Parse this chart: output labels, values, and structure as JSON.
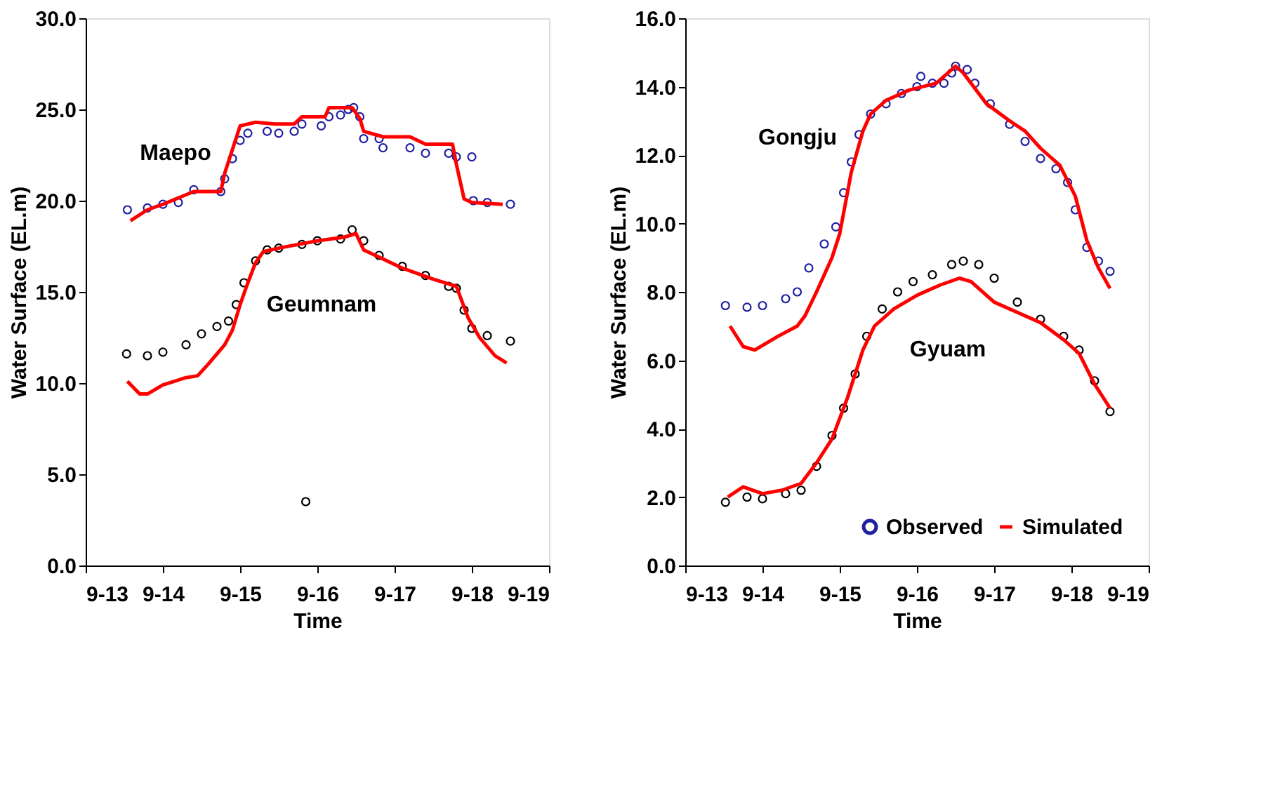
{
  "chart_data": [
    {
      "type": "line",
      "xlabel": "Time",
      "ylabel": "Water Surface (EL.m)",
      "xlim": [
        "--09-13",
        "--09-19"
      ],
      "ylim": [
        0,
        30
      ],
      "xticks": [
        {
          "value": "--09-13",
          "label": "9-13"
        },
        {
          "value": "--09-14",
          "label": "9-14"
        },
        {
          "value": "--09-15",
          "label": "9-15"
        },
        {
          "value": "--09-16",
          "label": "9-16"
        },
        {
          "value": "--09-17",
          "label": "9-17"
        },
        {
          "value": "--09-18",
          "label": "9-18"
        },
        {
          "value": "--09-19",
          "label": "9-19"
        }
      ],
      "yticks": [
        {
          "value": 0,
          "label": "0.0"
        },
        {
          "value": 5,
          "label": "5.0"
        },
        {
          "value": 10,
          "label": "10.0"
        },
        {
          "value": 15,
          "label": "15.0"
        },
        {
          "value": 20,
          "label": "20.0"
        },
        {
          "value": 25,
          "label": "25.0"
        },
        {
          "value": 30,
          "label": "30.0"
        }
      ],
      "grid": false,
      "legend": false,
      "annotations": [
        "Maepo",
        "Geumnam"
      ],
      "series": [
        {
          "type": "scatter",
          "color": "#1f1fa0",
          "marker": "circle",
          "x": [
            "--09-13T12:58",
            "--09-13T19:12",
            "--09-14T00:00",
            "--09-14T04:48",
            "--09-14T09:36",
            "--09-14T18:00",
            "--09-14T19:12",
            "--09-14T21:36",
            "--09-15T00:00",
            "--09-15T02:24",
            "--09-15T08:24",
            "--09-15T12:00",
            "--09-15T16:48",
            "--09-15T19:12",
            "--09-16T01:12",
            "--09-16T03:36",
            "--09-16T07:12",
            "--09-16T09:36",
            "--09-16T11:17",
            "--09-16T13:12",
            "--09-16T14:24",
            "--09-16T19:12",
            "--09-16T20:24",
            "--09-17T04:48",
            "--09-17T09:36",
            "--09-17T16:48",
            "--09-17T19:12",
            "--09-18T00:00",
            "--09-18T00:29",
            "--09-18T04:48",
            "--09-18T12:00"
          ],
          "values": [
            19.5,
            19.6,
            19.8,
            19.9,
            20.6,
            20.5,
            21.2,
            22.3,
            23.3,
            23.7,
            23.8,
            23.7,
            23.8,
            24.2,
            24.1,
            24.6,
            24.7,
            25.0,
            25.1,
            24.6,
            23.4,
            23.4,
            22.9,
            22.9,
            22.6,
            22.6,
            22.4,
            22.4,
            20.0,
            19.9,
            19.8
          ]
        },
        {
          "color": "#ff0000",
          "x": [
            "--09-13T13:55",
            "--09-13T19:12",
            "--09-14T00:00",
            "--09-14T09:36",
            "--09-14T18:00",
            "--09-14T19:12",
            "--09-15T00:00",
            "--09-15T04:48",
            "--09-15T10:48",
            "--09-15T16:48",
            "--09-15T19:12",
            "--09-16T02:24",
            "--09-16T03:36",
            "--09-16T10:48",
            "--09-16T13:12",
            "--09-16T14:24",
            "--09-16T20:24",
            "--09-17T04:48",
            "--09-17T09:36",
            "--09-17T18:00",
            "--09-17T19:12",
            "--09-17T21:36",
            "--09-18T00:00",
            "--09-18T09:36"
          ],
          "values": [
            18.9,
            19.5,
            19.8,
            20.5,
            20.5,
            21.5,
            24.1,
            24.3,
            24.2,
            24.2,
            24.6,
            24.6,
            25.1,
            25.1,
            24.5,
            23.8,
            23.5,
            23.5,
            23.1,
            23.1,
            22.0,
            20.1,
            19.9,
            19.8
          ]
        },
        {
          "type": "scatter",
          "color": "#000000",
          "marker": "circle",
          "x": [
            "--09-13T12:43",
            "--09-13T19:12",
            "--09-14T00:00",
            "--09-14T07:12",
            "--09-14T12:00",
            "--09-14T16:48",
            "--09-14T20:24",
            "--09-14T22:48",
            "--09-15T01:12",
            "--09-15T04:48",
            "--09-15T08:24",
            "--09-15T12:00",
            "--09-15T19:12",
            "--09-15T20:24",
            "--09-16T00:00",
            "--09-16T07:12",
            "--09-16T10:48",
            "--09-16T14:24",
            "--09-16T19:12",
            "--09-17T02:24",
            "--09-17T09:36",
            "--09-17T16:48",
            "--09-17T19:12",
            "--09-17T21:36",
            "--09-18T00:00",
            "--09-18T04:48",
            "--09-18T12:00"
          ],
          "values": [
            11.6,
            11.5,
            11.7,
            12.1,
            12.7,
            13.1,
            13.4,
            14.3,
            15.5,
            16.7,
            17.3,
            17.4,
            17.6,
            3.5,
            17.8,
            17.9,
            18.4,
            17.8,
            17.0,
            16.4,
            15.9,
            15.3,
            15.2,
            14.0,
            13.0,
            12.6,
            12.3
          ]
        },
        {
          "color": "#ff0000",
          "x": [
            "--09-13T12:58",
            "--09-13T16:48",
            "--09-13T19:12",
            "--09-14T00:00",
            "--09-14T07:12",
            "--09-14T10:48",
            "--09-14T14:24",
            "--09-14T19:12",
            "--09-14T21:36",
            "--09-15T00:00",
            "--09-15T02:24",
            "--09-15T04:48",
            "--09-15T07:12",
            "--09-15T12:00",
            "--09-16T00:00",
            "--09-16T08:24",
            "--09-16T12:00",
            "--09-16T14:24",
            "--09-16T19:12",
            "--09-17T02:24",
            "--09-17T12:00",
            "--09-17T19:12",
            "--09-17T22:48",
            "--09-18T02:24",
            "--09-18T07:12",
            "--09-18T10:48"
          ],
          "values": [
            10.1,
            9.4,
            9.4,
            9.9,
            10.3,
            10.4,
            11.1,
            12.1,
            12.9,
            14.3,
            15.5,
            16.6,
            17.2,
            17.4,
            17.8,
            18.0,
            18.2,
            17.3,
            16.9,
            16.3,
            15.7,
            15.3,
            13.6,
            12.5,
            11.5,
            11.1
          ]
        }
      ]
    },
    {
      "type": "line",
      "xlabel": "Time",
      "ylabel": "Water Surface (EL.m)",
      "xlim": [
        "--09-13",
        "--09-19"
      ],
      "ylim": [
        0,
        16
      ],
      "xticks": [
        {
          "value": "--09-13",
          "label": "9-13"
        },
        {
          "value": "--09-14",
          "label": "9-14"
        },
        {
          "value": "--09-15",
          "label": "9-15"
        },
        {
          "value": "--09-16",
          "label": "9-16"
        },
        {
          "value": "--09-17",
          "label": "9-17"
        },
        {
          "value": "--09-18",
          "label": "9-18"
        },
        {
          "value": "--09-19",
          "label": "9-19"
        }
      ],
      "yticks": [
        {
          "value": 0,
          "label": "0.0"
        },
        {
          "value": 2,
          "label": "2.0"
        },
        {
          "value": 4,
          "label": "4.0"
        },
        {
          "value": 6,
          "label": "6.0"
        },
        {
          "value": 8,
          "label": "8.0"
        },
        {
          "value": 10,
          "label": "10.0"
        },
        {
          "value": 12,
          "label": "12.0"
        },
        {
          "value": 14,
          "label": "14.0"
        },
        {
          "value": 16,
          "label": "16.0"
        }
      ],
      "grid": false,
      "legend": "bottom right",
      "annotations": [
        "Gongju",
        "Gyuam"
      ],
      "series": [
        {
          "type": "scatter",
          "name": "Observed",
          "color": "#1f1fa0",
          "marker": "circle",
          "x": [
            "--09-13T12:29",
            "--09-13T19:12",
            "--09-14T00:00",
            "--09-14T07:12",
            "--09-14T10:48",
            "--09-14T14:24",
            "--09-14T19:12",
            "--09-14T22:48",
            "--09-15T01:12",
            "--09-15T03:36",
            "--09-15T06:00",
            "--09-15T09:36",
            "--09-15T14:24",
            "--09-15T19:12",
            "--09-16T00:00",
            "--09-16T01:12",
            "--09-16T04:48",
            "--09-16T08:24",
            "--09-16T10:48",
            "--09-16T12:00",
            "--09-16T15:36",
            "--09-16T18:00",
            "--09-16T22:48",
            "--09-17T04:48",
            "--09-17T09:36",
            "--09-17T14:24",
            "--09-17T19:12",
            "--09-17T22:48",
            "--09-18T01:12",
            "--09-18T04:48",
            "--09-18T08:24",
            "--09-18T12:00"
          ],
          "values": [
            7.6,
            7.55,
            7.6,
            7.8,
            8.0,
            8.7,
            9.4,
            9.9,
            10.9,
            11.8,
            12.6,
            13.2,
            13.5,
            13.8,
            14.0,
            14.3,
            14.1,
            14.1,
            14.4,
            14.6,
            14.5,
            14.1,
            13.5,
            12.9,
            12.4,
            11.9,
            11.6,
            11.2,
            10.4,
            9.3,
            8.9,
            8.6
          ]
        },
        {
          "name": "Simulated",
          "color": "#ff0000",
          "x": [
            "--09-13T13:55",
            "--09-13T18:00",
            "--09-13T21:36",
            "--09-14T01:12",
            "--09-14T04:48",
            "--09-14T10:48",
            "--09-14T13:12",
            "--09-14T16:48",
            "--09-14T21:36",
            "--09-15T00:00",
            "--09-15T03:36",
            "--09-15T07:12",
            "--09-15T09:36",
            "--09-15T14:24",
            "--09-15T21:36",
            "--09-16T06:00",
            "--09-16T12:00",
            "--09-16T14:24",
            "--09-16T21:36",
            "--09-17T04:48",
            "--09-17T09:36",
            "--09-17T14:24",
            "--09-17T20:24",
            "--09-18T01:12",
            "--09-18T04:48",
            "--09-18T08:24",
            "--09-18T12:00"
          ],
          "values": [
            7.0,
            6.4,
            6.3,
            6.5,
            6.7,
            7.0,
            7.3,
            8.0,
            9.0,
            9.7,
            11.5,
            12.7,
            13.2,
            13.6,
            13.9,
            14.1,
            14.6,
            14.4,
            13.5,
            13.0,
            12.7,
            12.2,
            11.7,
            10.8,
            9.5,
            8.7,
            8.1
          ]
        },
        {
          "type": "scatter",
          "color": "#000000",
          "marker": "circle",
          "x": [
            "--09-13T12:29",
            "--09-13T19:12",
            "--09-14T00:00",
            "--09-14T07:12",
            "--09-14T12:00",
            "--09-14T16:48",
            "--09-14T21:36",
            "--09-15T01:12",
            "--09-15T04:48",
            "--09-15T08:24",
            "--09-15T13:12",
            "--09-15T18:00",
            "--09-15T22:48",
            "--09-16T04:48",
            "--09-16T10:48",
            "--09-16T14:24",
            "--09-16T19:12",
            "--09-17T00:00",
            "--09-17T07:12",
            "--09-17T14:24",
            "--09-17T21:36",
            "--09-18T02:24",
            "--09-18T07:12",
            "--09-18T12:00"
          ],
          "values": [
            1.85,
            2.0,
            1.95,
            2.1,
            2.2,
            2.9,
            3.8,
            4.6,
            5.6,
            6.7,
            7.5,
            8.0,
            8.3,
            8.5,
            8.8,
            8.9,
            8.8,
            8.4,
            7.7,
            7.2,
            6.7,
            6.3,
            5.4,
            4.5
          ]
        },
        {
          "color": "#ff0000",
          "x": [
            "--09-13T13:12",
            "--09-13T18:00",
            "--09-14T00:00",
            "--09-14T06:00",
            "--09-14T12:00",
            "--09-14T16:48",
            "--09-14T21:36",
            "--09-15T02:24",
            "--09-15T07:12",
            "--09-15T10:48",
            "--09-15T16:48",
            "--09-16T00:00",
            "--09-16T07:12",
            "--09-16T13:12",
            "--09-16T16:48",
            "--09-17T00:00",
            "--09-17T07:12",
            "--09-17T14:24",
            "--09-17T21:36",
            "--09-18T02:24",
            "--09-18T07:12",
            "--09-18T12:00"
          ],
          "values": [
            2.0,
            2.3,
            2.1,
            2.2,
            2.4,
            3.0,
            3.7,
            4.9,
            6.3,
            7.0,
            7.5,
            7.9,
            8.2,
            8.4,
            8.3,
            7.7,
            7.4,
            7.1,
            6.6,
            6.2,
            5.3,
            4.6
          ]
        }
      ]
    }
  ]
}
